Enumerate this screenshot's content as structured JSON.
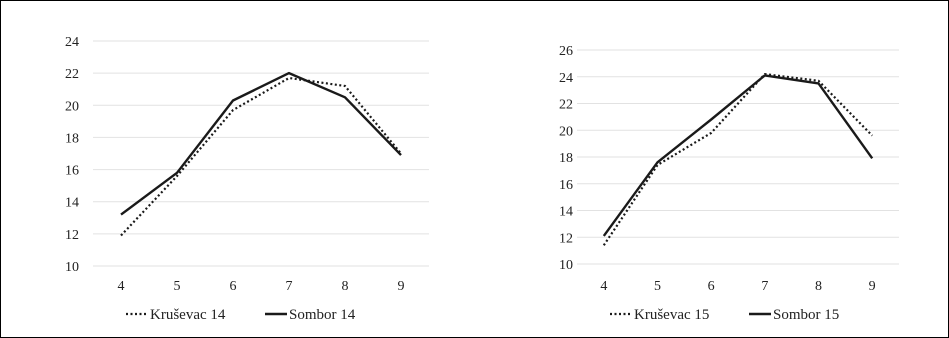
{
  "chart_data": [
    {
      "type": "line",
      "title": "",
      "xlabel": "",
      "ylabel": "",
      "x": [
        4,
        5,
        6,
        7,
        8,
        9
      ],
      "ylim": [
        10,
        24
      ],
      "yticks": [
        10,
        12,
        14,
        16,
        18,
        20,
        22,
        24
      ],
      "grid": "horizontal",
      "legend_position": "bottom",
      "series": [
        {
          "name": "Kruševac 14",
          "style": "dotted",
          "color": "#1a1a1a",
          "values": [
            11.9,
            15.6,
            19.7,
            21.7,
            21.2,
            17.0
          ]
        },
        {
          "name": "Sombor 14",
          "style": "solid",
          "color": "#1a1a1a",
          "values": [
            13.2,
            15.8,
            20.3,
            22.0,
            20.5,
            16.9
          ]
        }
      ]
    },
    {
      "type": "line",
      "title": "",
      "xlabel": "",
      "ylabel": "",
      "x": [
        4,
        5,
        6,
        7,
        8,
        9
      ],
      "ylim": [
        10,
        26
      ],
      "yticks": [
        10,
        12,
        14,
        16,
        18,
        20,
        22,
        24,
        26
      ],
      "grid": "horizontal",
      "legend_position": "bottom",
      "series": [
        {
          "name": "Kruševac 15",
          "style": "dotted",
          "color": "#1a1a1a",
          "values": [
            11.4,
            17.4,
            19.8,
            24.2,
            23.7,
            19.6
          ]
        },
        {
          "name": "Sombor 15",
          "style": "solid",
          "color": "#1a1a1a",
          "values": [
            12.1,
            17.6,
            20.8,
            24.1,
            23.5,
            17.9
          ]
        }
      ]
    }
  ]
}
